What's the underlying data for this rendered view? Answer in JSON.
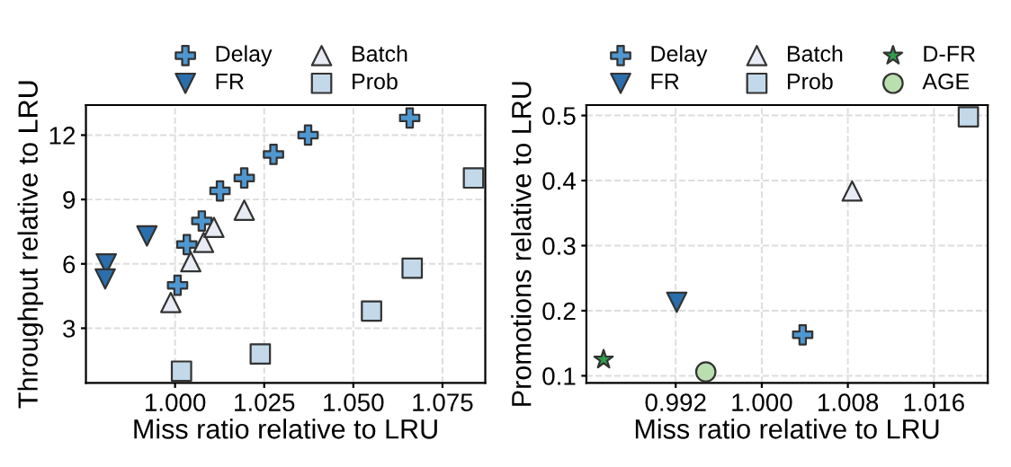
{
  "chart_data": [
    {
      "type": "scatter",
      "xlabel": "Miss ratio relative to LRU",
      "ylabel": "Throughput relative to LRU",
      "xlim": [
        0.975,
        1.087
      ],
      "xticks": [
        {
          "value": 1.0,
          "label": "1.000"
        },
        {
          "value": 1.025,
          "label": "1.025"
        },
        {
          "value": 1.05,
          "label": "1.050"
        },
        {
          "value": 1.075,
          "label": "1.075"
        }
      ],
      "ylim": [
        0.45,
        13.4
      ],
      "yticks": [
        3,
        6,
        9,
        12
      ],
      "grid": true,
      "legend": "top",
      "series": [
        {
          "name": "Delay",
          "color": "#4f97d0",
          "marker": "cross",
          "x": [
            1.0658,
            1.0373,
            1.0276,
            1.0194,
            1.0126,
            1.0075,
            1.0033,
            1.0007
          ],
          "values": [
            12.8,
            12.0,
            11.1,
            10.0,
            9.4,
            8.0,
            6.9,
            5.0
          ]
        },
        {
          "name": "FR",
          "color": "#2a6eab",
          "marker": "triangle_down",
          "x": [
            0.9807,
            0.9804,
            0.9921
          ],
          "values": [
            6.0,
            5.3,
            7.3
          ]
        },
        {
          "name": "Batch",
          "color": "#e8eaf4",
          "marker": "triangle",
          "x": [
            0.9988,
            1.0044,
            1.008,
            1.0109,
            1.0194
          ],
          "values": [
            4.2,
            6.1,
            7.0,
            7.7,
            8.5
          ]
        },
        {
          "name": "Prob",
          "color": "#c3d9ea",
          "marker": "square",
          "x": [
            1.0018,
            1.0239,
            1.0551,
            1.0665,
            1.0837
          ],
          "values": [
            1.0,
            1.8,
            3.8,
            5.8,
            10.0
          ]
        }
      ]
    },
    {
      "type": "scatter",
      "xlabel": "Miss ratio relative to LRU",
      "ylabel": "Promotions relative to LRU",
      "xlim": [
        0.9837,
        1.021
      ],
      "xticks": [
        {
          "value": 0.992,
          "label": "0.992"
        },
        {
          "value": 1.0,
          "label": "1.000"
        },
        {
          "value": 1.008,
          "label": "1.008"
        },
        {
          "value": 1.016,
          "label": "1.016"
        }
      ],
      "ylim": [
        0.089,
        0.516
      ],
      "yticks": [
        0.1,
        0.2,
        0.3,
        0.4,
        0.5
      ],
      "grid": true,
      "legend": "top",
      "series": [
        {
          "name": "Delay",
          "color": "#4f97d0",
          "marker": "cross",
          "x": [
            1.0038
          ],
          "values": [
            0.163
          ]
        },
        {
          "name": "FR",
          "color": "#2a6eab",
          "marker": "triangle_down",
          "x": [
            0.9921
          ],
          "values": [
            0.213
          ]
        },
        {
          "name": "Batch",
          "color": "#e8eaf4",
          "marker": "triangle",
          "x": [
            1.0084
          ],
          "values": [
            0.384
          ]
        },
        {
          "name": "Prob",
          "color": "#c3d9ea",
          "marker": "square",
          "x": [
            1.0192
          ],
          "values": [
            0.498
          ]
        },
        {
          "name": "D-FR",
          "color": "#2e9e4a",
          "marker": "star",
          "x": [
            0.9853
          ],
          "values": [
            0.125
          ]
        },
        {
          "name": "AGE",
          "color": "#b9dfae",
          "marker": "circle",
          "x": [
            0.9948
          ],
          "values": [
            0.106
          ]
        }
      ]
    }
  ]
}
